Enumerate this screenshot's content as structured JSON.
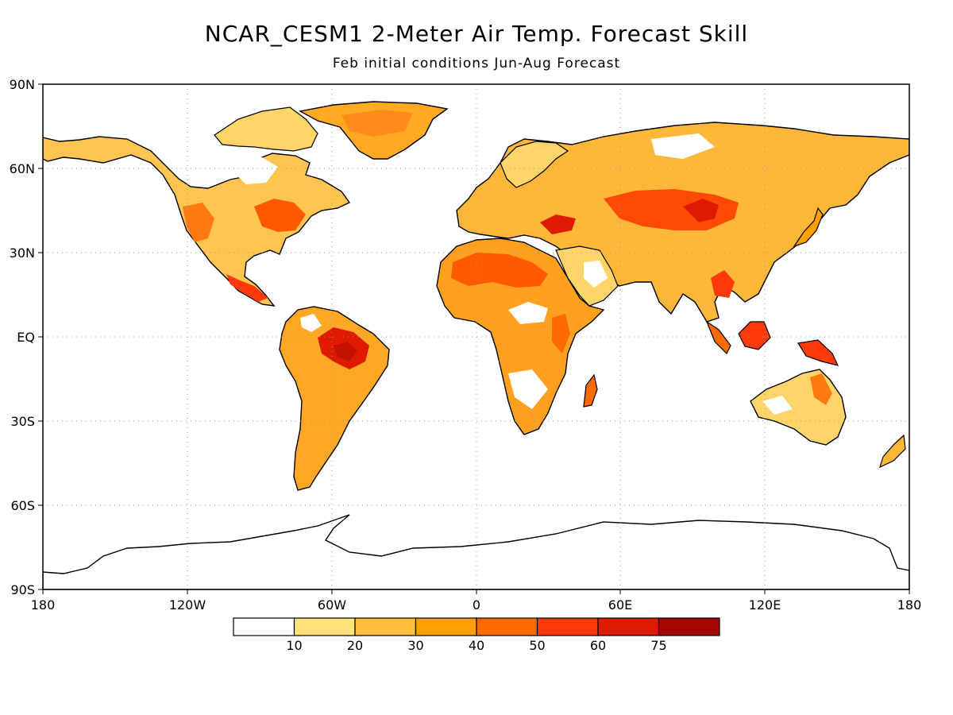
{
  "title": "NCAR_CESM1 2-Meter Air Temp. Forecast Skill",
  "subtitle": "Feb initial conditions  Jun-Aug Forecast",
  "axes": {
    "lat_labels": [
      "90N",
      "60N",
      "30N",
      "EQ",
      "30S",
      "60S",
      "90S"
    ],
    "lat_values": [
      90,
      60,
      30,
      0,
      -30,
      -60,
      -90
    ],
    "lon_labels": [
      "180",
      "120W",
      "60W",
      "0",
      "60E",
      "120E",
      "180"
    ],
    "lon_values": [
      -180,
      -120,
      -60,
      0,
      60,
      120,
      180
    ],
    "grid": true,
    "grid_style": "dotted"
  },
  "legend": {
    "placement": "bottom",
    "labels": [
      "10",
      "20",
      "30",
      "40",
      "50",
      "60",
      "75"
    ],
    "colors": [
      "#ffffff",
      "#ffe27a",
      "#ffbf3c",
      "#ffa000",
      "#ff6a00",
      "#ff3a0a",
      "#e01a00",
      "#a40800"
    ]
  },
  "chart_data": {
    "type": "heatmap",
    "title": "NCAR_CESM1 2-Meter Air Temp. Forecast Skill",
    "subtitle": "Feb initial conditions  Jun-Aug Forecast",
    "xlim": [
      -180,
      180
    ],
    "ylim": [
      -90,
      90
    ],
    "levels": [
      10,
      20,
      30,
      40,
      50,
      60,
      75
    ]
  }
}
